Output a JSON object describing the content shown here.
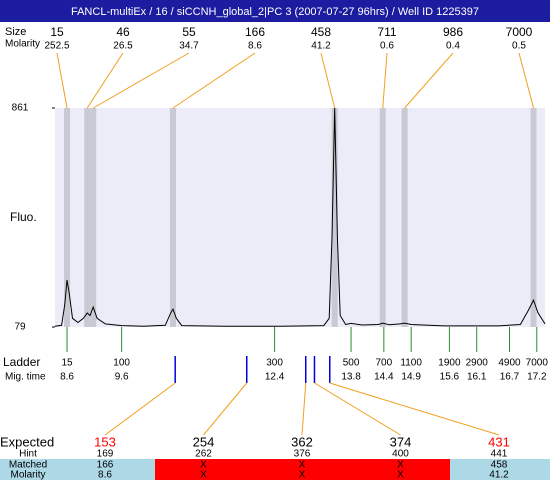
{
  "title": "FANCL-multiEx / 16 / siCCNH_global_2|PC 3 (2007-07-27 96hrs) / Well ID 1225397",
  "peaks": {
    "size_label": "Size",
    "molarity_label": "Molarity",
    "sizes": [
      15,
      46,
      55,
      166,
      458,
      711,
      986,
      7000
    ],
    "molarity": [
      252.5,
      26.5,
      34.7,
      8.6,
      41.2,
      0.6,
      0.4,
      0.5
    ],
    "mig_time": [
      8.6,
      8.97,
      9.08,
      10.54,
      13.5,
      14.38,
      14.78,
      17.14
    ]
  },
  "plot": {
    "type": "line",
    "y_label": "Fluo.",
    "ylim": [
      79,
      861
    ],
    "yticks": [
      79,
      861
    ],
    "xlim": [
      8.38,
      17.35
    ],
    "color": "#000000",
    "trace": {
      "x": [
        8.38,
        8.5,
        8.56,
        8.6,
        8.64,
        8.7,
        8.8,
        8.9,
        8.97,
        9.02,
        9.08,
        9.15,
        9.3,
        9.6,
        10.0,
        10.4,
        10.5,
        10.54,
        10.6,
        10.7,
        11.5,
        12.5,
        13.3,
        13.4,
        13.45,
        13.5,
        13.55,
        13.6,
        13.7,
        13.8,
        14.0,
        14.3,
        14.38,
        14.5,
        14.7,
        14.78,
        14.9,
        15.5,
        16.5,
        16.9,
        17.05,
        17.14,
        17.22,
        17.35
      ],
      "values": [
        82,
        85,
        160,
        247,
        200,
        110,
        95,
        110,
        129,
        120,
        150,
        110,
        90,
        84,
        82,
        85,
        130,
        143,
        110,
        84,
        82,
        82,
        84,
        110,
        400,
        861,
        400,
        120,
        88,
        92,
        86,
        88,
        93,
        87,
        90,
        93,
        88,
        83,
        83,
        88,
        140,
        175,
        130,
        90
      ]
    }
  },
  "ladder": {
    "label": "Ladder",
    "mig_label": "Mig. time",
    "sizes": [
      15,
      100,
      300,
      500,
      700,
      1100,
      1900,
      2900,
      4900,
      7000
    ],
    "mig_time": [
      8.6,
      9.6,
      12.4,
      13.8,
      14.4,
      14.9,
      15.6,
      16.1,
      16.7,
      17.2
    ]
  },
  "expected": {
    "label": "Expected",
    "hint_label": "Hint",
    "matched_label": "Matched",
    "molarity_label": "Molarity",
    "values": [
      153,
      254,
      362,
      374,
      431
    ],
    "hints": [
      169,
      262,
      376,
      400,
      441
    ],
    "matched": [
      166,
      "X",
      "X",
      "X",
      458
    ],
    "molarity": [
      8.6,
      "X",
      "X",
      "X",
      41.2
    ],
    "mig_time": [
      10.58,
      11.89,
      12.97,
      13.13,
      13.41
    ]
  }
}
